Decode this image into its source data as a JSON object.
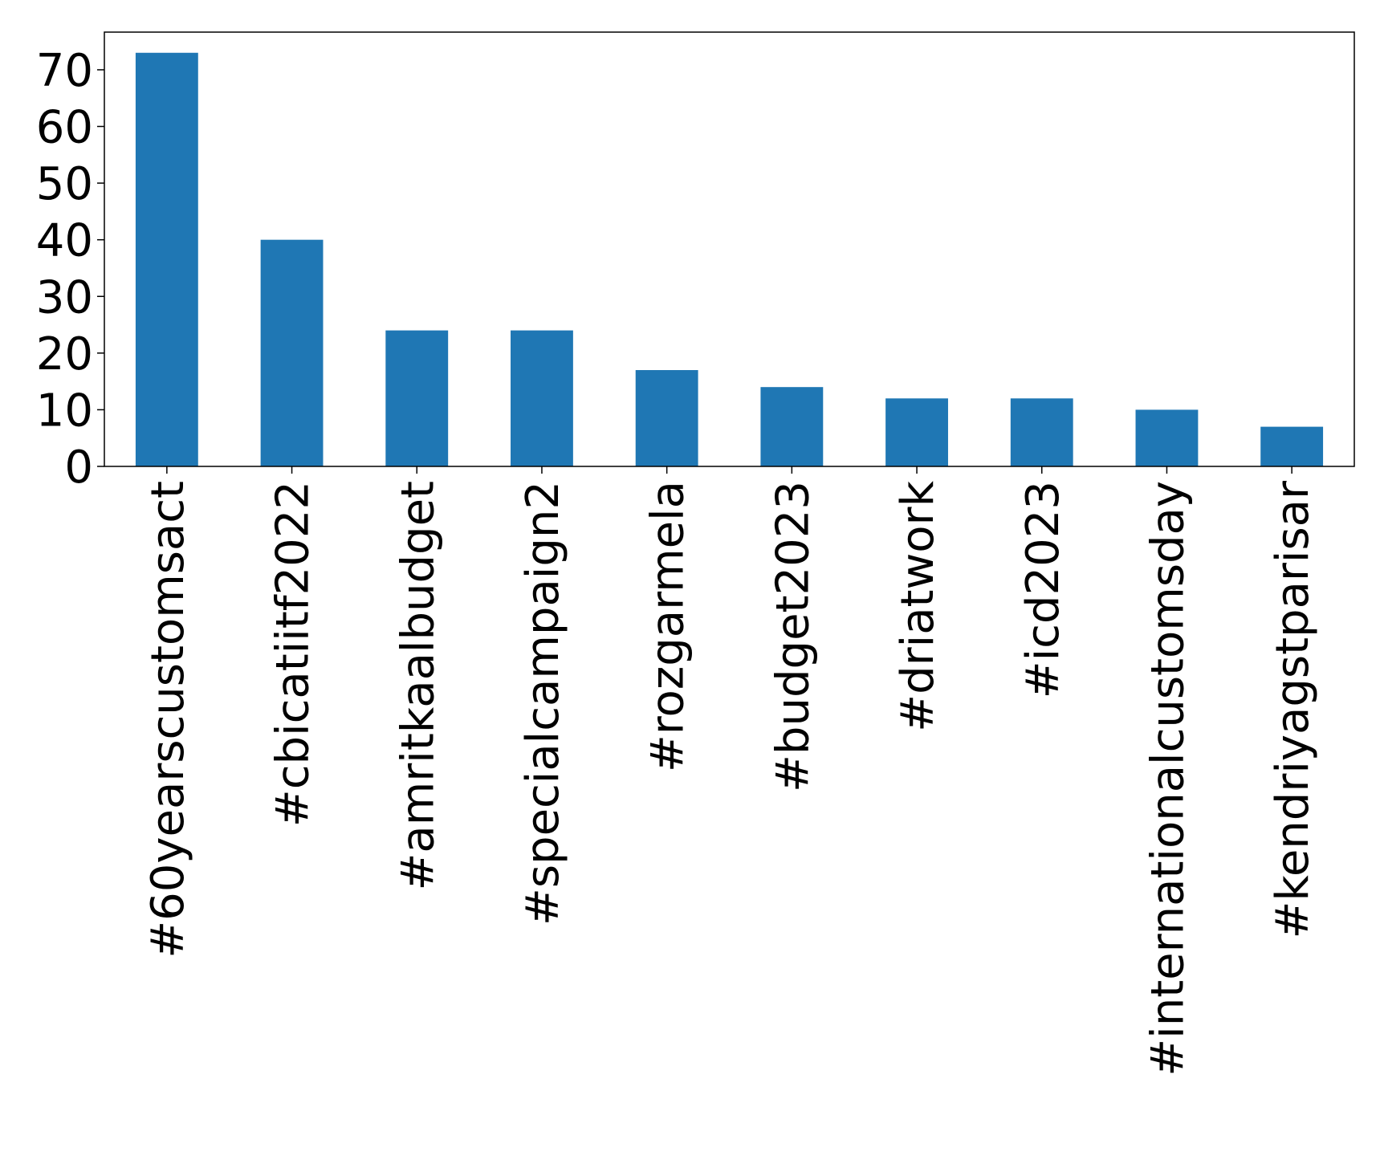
{
  "chart_data": {
    "type": "bar",
    "categories": [
      "#60yearscustomsact",
      "#cbicatiitf2022",
      "#amritkaalbudget",
      "#specialcampaign2",
      "#rozgarmela",
      "#budget2023",
      "#driatwork",
      "#icd2023",
      "#internationalcustomsday",
      "#kendriyagstparisar"
    ],
    "values": [
      73,
      40,
      24,
      24,
      17,
      14,
      12,
      12,
      10,
      7
    ],
    "color": "#1f77b4",
    "ylim": [
      0,
      76.65
    ],
    "yticks": [
      0,
      10,
      20,
      30,
      40,
      50,
      60,
      70
    ],
    "grid": false
  }
}
